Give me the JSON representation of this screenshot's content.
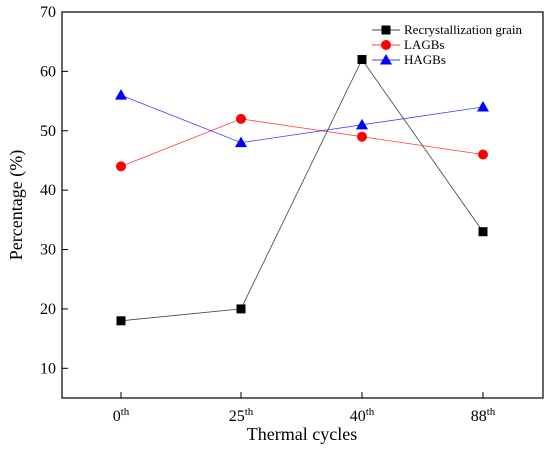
{
  "chart_data": {
    "type": "line",
    "xlabel": "Thermal cycles",
    "ylabel": "Percentage (%)",
    "categories": [
      {
        "base": "0",
        "sup": "th"
      },
      {
        "base": "25",
        "sup": "th"
      },
      {
        "base": "40",
        "sup": "th"
      },
      {
        "base": "88",
        "sup": "th"
      }
    ],
    "ylim": [
      5,
      70
    ],
    "yticks": [
      10,
      20,
      30,
      40,
      50,
      60,
      70
    ],
    "grid": false,
    "legend_position": "top-right",
    "series": [
      {
        "name": "Recrystallization grain",
        "color": "#000000",
        "marker": "square",
        "values": [
          18,
          20,
          62,
          33
        ]
      },
      {
        "name": "LAGBs",
        "color": "#ff0000",
        "marker": "circle",
        "values": [
          44,
          52,
          49,
          46
        ]
      },
      {
        "name": "HAGBs",
        "color": "#0000ff",
        "marker": "triangle",
        "values": [
          56,
          48,
          51,
          54
        ]
      }
    ]
  }
}
